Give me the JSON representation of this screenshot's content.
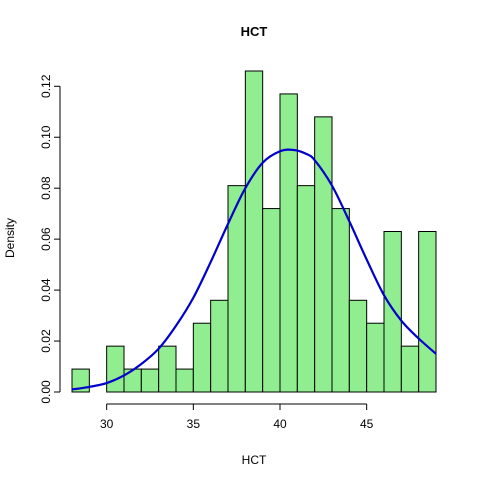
{
  "chart_data": {
    "type": "bar",
    "subtype": "histogram-with-density",
    "title": "HCT",
    "xlabel": "HCT",
    "ylabel": "Density",
    "xlim": [
      28,
      49
    ],
    "ylim": [
      0,
      0.126
    ],
    "x_ticks": [
      30,
      35,
      40,
      45
    ],
    "x_tick_labels": [
      "30",
      "35",
      "40",
      "45"
    ],
    "y_ticks": [
      0,
      0.02,
      0.04,
      0.06,
      0.08,
      0.1,
      0.12
    ],
    "y_tick_labels": [
      "0.00",
      "0.02",
      "0.04",
      "0.06",
      "0.08",
      "0.10",
      "0.12"
    ],
    "bin_edges": [
      28,
      29,
      30,
      31,
      32,
      33,
      34,
      35,
      36,
      37,
      38,
      39,
      40,
      41,
      42,
      43,
      44,
      45,
      46,
      47,
      48,
      49
    ],
    "values": [
      0.009,
      0,
      0.018,
      0.009,
      0.009,
      0.018,
      0.009,
      0.027,
      0.036,
      0.081,
      0.126,
      0.072,
      0.117,
      0.081,
      0.108,
      0.072,
      0.036,
      0.027,
      0.063,
      0.018,
      0.063
    ],
    "density_curve": {
      "x": [
        28,
        29,
        30,
        31,
        32,
        33,
        34,
        35,
        36,
        37,
        38,
        39,
        40,
        40.8,
        41.5,
        42,
        43,
        44,
        45,
        46,
        47,
        48,
        49
      ],
      "y": [
        0.001,
        0.002,
        0.0035,
        0.0065,
        0.011,
        0.017,
        0.026,
        0.037,
        0.051,
        0.066,
        0.08,
        0.09,
        0.0945,
        0.095,
        0.0935,
        0.091,
        0.081,
        0.067,
        0.052,
        0.038,
        0.028,
        0.021,
        0.015
      ]
    },
    "bar_color": "#90ee90",
    "bar_border_color": "#000000",
    "curve_color": "#0000cd",
    "grid": false,
    "legend": "none"
  }
}
